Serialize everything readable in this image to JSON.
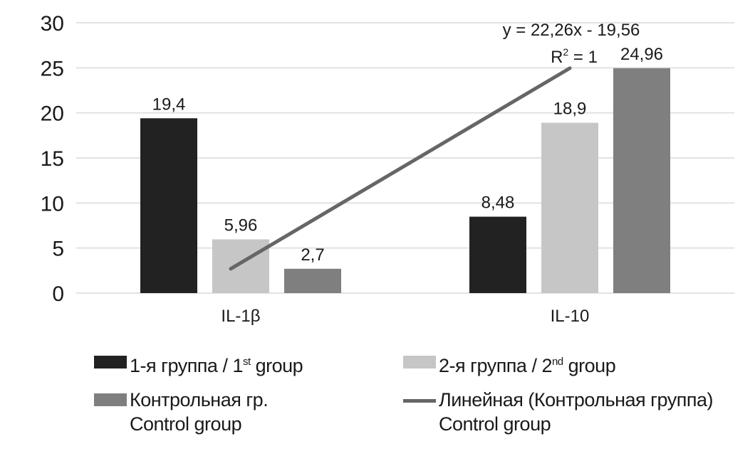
{
  "chart_data": {
    "type": "bar",
    "title": "",
    "xlabel": "",
    "ylabel": "",
    "categories": [
      "IL-1β",
      "IL-10"
    ],
    "ylim": [
      0,
      30
    ],
    "yticks": [
      "0",
      "5",
      "10",
      "15",
      "20",
      "25",
      "30"
    ],
    "grid": true,
    "series": [
      {
        "name": "1-я группа / 1st group",
        "color": "#222222",
        "values": [
          19.4,
          8.48
        ],
        "labels": [
          "19,4",
          "8,48"
        ]
      },
      {
        "name": "2-я группа / 2nd group",
        "color": "#c6c6c6",
        "values": [
          5.96,
          18.9
        ],
        "labels": [
          "5,96",
          "18,9"
        ]
      },
      {
        "name": "Контрольная гр. Control group",
        "color": "#7f7f7f",
        "values": [
          2.7,
          24.96
        ],
        "labels": [
          "2,7",
          "24,96"
        ]
      }
    ],
    "trendline": {
      "type": "line",
      "name": "Линейная (Контрольная группа) Control group",
      "color": "#666666",
      "series_ref": "Контрольная гр. Control group",
      "slope": 22.26,
      "intercept": -19.56,
      "equation": "y = 22,26x - 19,56",
      "r2_label": "R",
      "r2_sup": "2",
      "r2_value": " = 1"
    },
    "legend": {
      "placement": "bottom",
      "items": [
        {
          "text": "1-я группа / 1",
          "sup": "st",
          "tail": " group",
          "line2": ""
        },
        {
          "text": "2-я группа / 2",
          "sup": "nd",
          "tail": " group",
          "line2": ""
        },
        {
          "text": "Контрольная гр.",
          "sup": "",
          "tail": "",
          "line2": "Control group"
        },
        {
          "text": "Линейная (Контрольная группа)",
          "sup": "",
          "tail": "",
          "line2": "Control group"
        }
      ]
    }
  }
}
